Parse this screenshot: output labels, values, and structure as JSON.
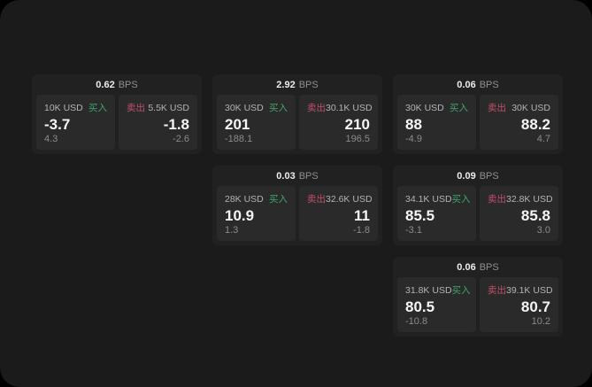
{
  "labels": {
    "bps_unit": "BPS",
    "buy": "买入",
    "sell": "卖出"
  },
  "colors": {
    "background": "#1b1b1c",
    "card": "#212122",
    "tile": "#2a2a2b",
    "buy": "#3fa56c",
    "sell": "#c04f6a"
  },
  "cards": [
    {
      "bps": "0.62",
      "buy": {
        "amount": "10K USD",
        "price": "-3.7",
        "change": "4.3"
      },
      "sell": {
        "amount": "5.5K USD",
        "price": "-1.8",
        "change": "-2.6"
      }
    },
    {
      "bps": "2.92",
      "buy": {
        "amount": "30K USD",
        "price": "201",
        "change": "-188.1"
      },
      "sell": {
        "amount": "30.1K USD",
        "price": "210",
        "change": "196.5"
      }
    },
    {
      "bps": "0.06",
      "buy": {
        "amount": "30K USD",
        "price": "88",
        "change": "-4.9"
      },
      "sell": {
        "amount": "30K USD",
        "price": "88.2",
        "change": "4.7"
      }
    },
    {
      "bps": "0.03",
      "buy": {
        "amount": "28K USD",
        "price": "10.9",
        "change": "1.3"
      },
      "sell": {
        "amount": "32.6K USD",
        "price": "11",
        "change": "-1.8"
      }
    },
    {
      "bps": "0.09",
      "buy": {
        "amount": "34.1K USD",
        "price": "85.5",
        "change": "-3.1"
      },
      "sell": {
        "amount": "32.8K USD",
        "price": "85.8",
        "change": "3.0"
      }
    },
    {
      "bps": "0.06",
      "buy": {
        "amount": "31.8K USD",
        "price": "80.5",
        "change": "-10.8"
      },
      "sell": {
        "amount": "39.1K USD",
        "price": "80.7",
        "change": "10.2"
      }
    }
  ]
}
